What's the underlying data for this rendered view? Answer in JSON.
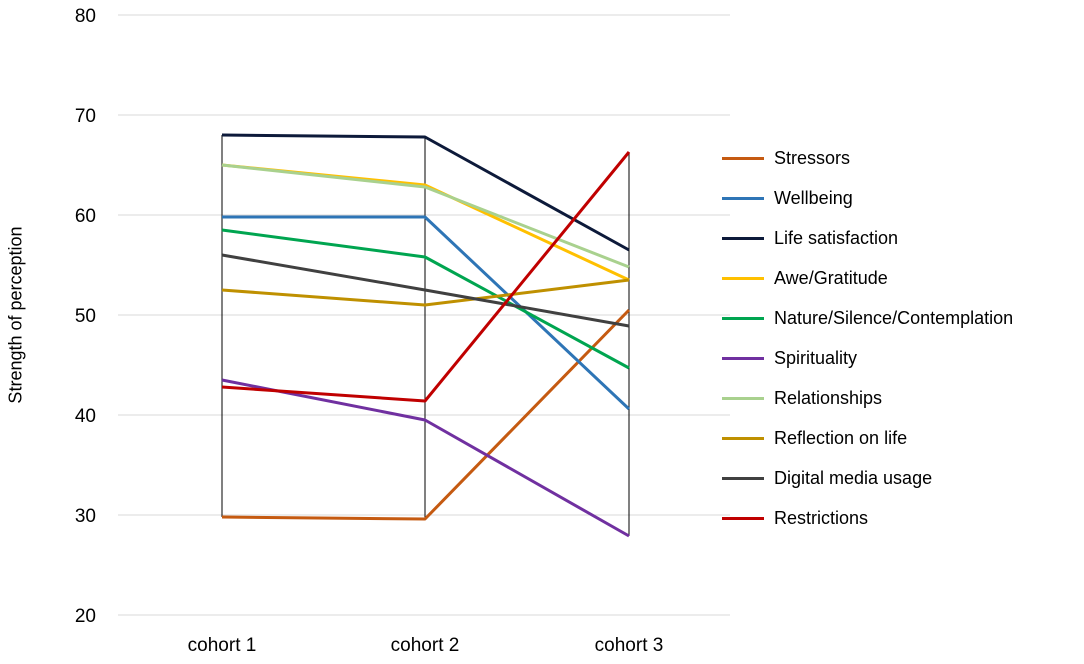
{
  "chart_data": {
    "type": "line",
    "title": "",
    "xlabel": "",
    "ylabel": "Strength of perception",
    "categories": [
      "cohort 1",
      "cohort 2",
      "cohort 3"
    ],
    "ylim": [
      20,
      80
    ],
    "yticks": [
      20,
      30,
      40,
      50,
      60,
      70,
      80
    ],
    "grid": true,
    "legend_position": "right",
    "series": [
      {
        "name": "Stressors",
        "color": "#C55A11",
        "values": [
          29.8,
          29.6,
          50.5
        ]
      },
      {
        "name": "Wellbeing",
        "color": "#2E75B6",
        "values": [
          59.8,
          59.8,
          40.6
        ]
      },
      {
        "name": "Life satisfaction",
        "color": "#0D1A3A",
        "values": [
          68.0,
          67.8,
          56.5
        ]
      },
      {
        "name": "Awe/Gratitude",
        "color": "#FFC000",
        "values": [
          65.0,
          63.0,
          53.5
        ]
      },
      {
        "name": "Nature/Silence/Contemplation",
        "color": "#00A550",
        "values": [
          58.5,
          55.8,
          44.7
        ]
      },
      {
        "name": "Spirituality",
        "color": "#7030A0",
        "values": [
          43.5,
          39.5,
          27.9
        ]
      },
      {
        "name": "Relationships",
        "color": "#A9D18E",
        "values": [
          65.0,
          62.8,
          54.8
        ]
      },
      {
        "name": "Reflection on life",
        "color": "#BF9000",
        "values": [
          52.5,
          51.0,
          53.5
        ]
      },
      {
        "name": "Digital media usage",
        "color": "#404040",
        "values": [
          56.0,
          52.5,
          48.9
        ]
      },
      {
        "name": "Restrictions",
        "color": "#C00000",
        "values": [
          42.8,
          41.4,
          66.3
        ]
      }
    ]
  }
}
